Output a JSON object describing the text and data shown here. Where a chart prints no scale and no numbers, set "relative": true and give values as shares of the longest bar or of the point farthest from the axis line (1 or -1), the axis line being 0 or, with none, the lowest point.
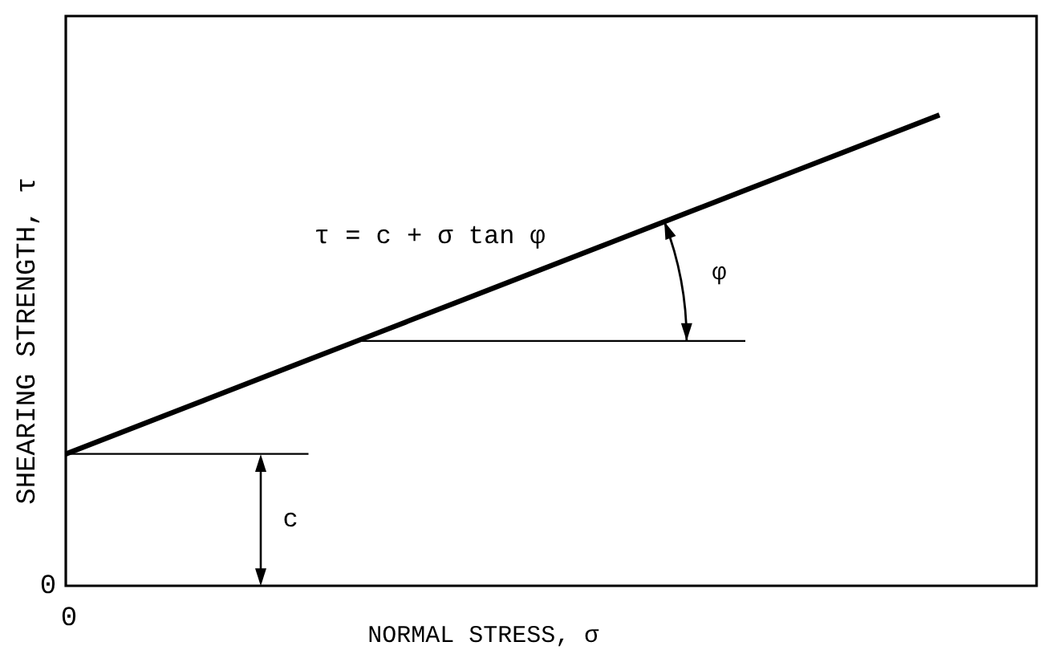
{
  "chart_data": {
    "type": "line",
    "xlabel": "NORMAL STRESS, σ",
    "ylabel": "SHEARING STRENGTH, τ",
    "relative": true,
    "categories": [
      null,
      null,
      null,
      null,
      null,
      null,
      null,
      null,
      null,
      null,
      null,
      null,
      null,
      null,
      null,
      null,
      null,
      null,
      null,
      null,
      null
    ],
    "series": [
      {
        "color": "#000000",
        "values": [
          0.28,
          0.32,
          0.36,
          0.4,
          0.44,
          0.48,
          0.52,
          0.56,
          0.6,
          0.64,
          0.68,
          0.72,
          0.76,
          0.8,
          0.84,
          0.88,
          0.92,
          0.96,
          1.0,
          null,
          null
        ]
      },
      {
        "color": "#000000",
        "values": [
          0.28,
          0.28,
          0.28,
          0.28,
          0.28,
          0.28,
          null,
          null,
          null,
          null,
          null,
          null,
          null,
          null,
          null,
          null,
          null,
          null,
          null,
          null,
          null
        ]
      },
      {
        "color": "#000000",
        "values": [
          null,
          null,
          null,
          null,
          null,
          null,
          0.52,
          0.52,
          0.52,
          0.52,
          0.52,
          0.52,
          0.52,
          0.52,
          0.52,
          null,
          null,
          null,
          null,
          null,
          null
        ]
      }
    ],
    "annotations": [
      "τ = c + σ tan φ",
      "φ",
      "c",
      "0",
      "0"
    ]
  }
}
